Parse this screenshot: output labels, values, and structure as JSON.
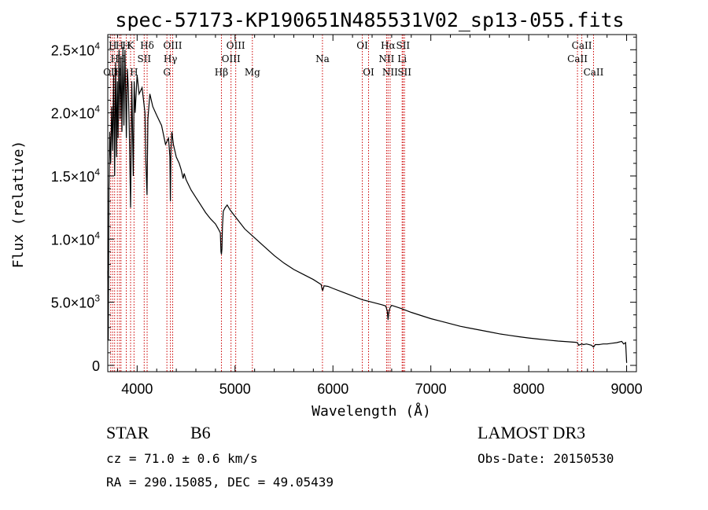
{
  "chart_data": {
    "type": "line",
    "title": "spec-57173-KP190651N485531V02_sp13-055.fits",
    "xlabel": "Wavelength (Å)",
    "ylabel": "Flux (relative)",
    "xlim": [
      3700,
      9100
    ],
    "ylim": [
      -500,
      26200
    ],
    "x_ticks": [
      {
        "value": 4000,
        "label": "4000"
      },
      {
        "value": 5000,
        "label": "5000"
      },
      {
        "value": 6000,
        "label": "6000"
      },
      {
        "value": 7000,
        "label": "7000"
      },
      {
        "value": 8000,
        "label": "8000"
      },
      {
        "value": 9000,
        "label": "9000"
      }
    ],
    "y_ticks": [
      {
        "value": 0,
        "mant": "0",
        "exp": ""
      },
      {
        "value": 5000,
        "mant": "5.0×10",
        "exp": "3"
      },
      {
        "value": 10000,
        "mant": "1.0×10",
        "exp": "4"
      },
      {
        "value": 15000,
        "mant": "1.5×10",
        "exp": "4"
      },
      {
        "value": 20000,
        "mant": "2.0×10",
        "exp": "4"
      },
      {
        "value": 25000,
        "mant": "2.5×10",
        "exp": "4"
      }
    ],
    "series": [
      {
        "name": "spectrum",
        "x": [
          3700,
          3705,
          3712,
          3720,
          3730,
          3740,
          3750,
          3760,
          3770,
          3780,
          3790,
          3798,
          3805,
          3815,
          3825,
          3835,
          3845,
          3855,
          3865,
          3875,
          3885,
          3890,
          3900,
          3910,
          3920,
          3933,
          3945,
          3960,
          3970,
          3980,
          4000,
          4020,
          4050,
          4080,
          4090,
          4101,
          4110,
          4130,
          4160,
          4200,
          4250,
          4290,
          4320,
          4335,
          4340,
          4345,
          4355,
          4370,
          4400,
          4430,
          4450,
          4470,
          4480,
          4500,
          4550,
          4600,
          4650,
          4700,
          4750,
          4800,
          4830,
          4850,
          4856,
          4861,
          4866,
          4872,
          4880,
          4900,
          4920,
          4950,
          5000,
          5050,
          5100,
          5200,
          5300,
          5400,
          5500,
          5600,
          5700,
          5800,
          5880,
          5890,
          5896,
          5900,
          5910,
          5950,
          6000,
          6100,
          6200,
          6300,
          6400,
          6500,
          6540,
          6555,
          6563,
          6570,
          6585,
          6600,
          6700,
          6800,
          6900,
          7000,
          7100,
          7200,
          7300,
          7400,
          7500,
          7600,
          7700,
          7800,
          7900,
          8000,
          8100,
          8200,
          8300,
          8400,
          8480,
          8498,
          8510,
          8542,
          8560,
          8590,
          8640,
          8662,
          8680,
          8720,
          8760,
          8800,
          8850,
          8900,
          8950,
          8970,
          8990,
          9000
        ],
        "y": [
          7500,
          2000,
          14000,
          18500,
          16000,
          20500,
          17000,
          23000,
          15000,
          24000,
          16500,
          22500,
          18000,
          25000,
          19500,
          24500,
          18500,
          25200,
          19000,
          25000,
          20500,
          18000,
          23500,
          22000,
          18500,
          12500,
          22500,
          15000,
          22500,
          20000,
          23000,
          21500,
          22000,
          20000,
          16000,
          13500,
          19500,
          21500,
          20500,
          19800,
          19000,
          17500,
          18000,
          16500,
          13000,
          17000,
          18500,
          17500,
          16500,
          16000,
          15500,
          14800,
          15200,
          14700,
          13900,
          13300,
          12700,
          12100,
          11600,
          11200,
          10800,
          10500,
          9000,
          8800,
          9200,
          11000,
          12200,
          12500,
          12700,
          12300,
          11800,
          11300,
          10800,
          10100,
          9400,
          8700,
          8100,
          7600,
          7200,
          6800,
          6400,
          6000,
          5950,
          6050,
          6300,
          6250,
          6100,
          5800,
          5500,
          5200,
          5000,
          4800,
          4700,
          4300,
          3600,
          4200,
          4600,
          4750,
          4500,
          4200,
          3950,
          3700,
          3500,
          3300,
          3100,
          2950,
          2800,
          2650,
          2500,
          2380,
          2270,
          2170,
          2080,
          2000,
          1930,
          1870,
          1830,
          1800,
          1600,
          1700,
          1650,
          1700,
          1600,
          1450,
          1650,
          1650,
          1700,
          1700,
          1750,
          1800,
          1900,
          1700,
          1800,
          200
        ]
      }
    ],
    "lines": [
      {
        "wave": 3730,
        "label": "OII",
        "row": 3
      },
      {
        "wave": 3750,
        "label": "H",
        "row": 1
      },
      {
        "wave": 3770,
        "label": "H",
        "row": 2
      },
      {
        "wave": 3798,
        "label": "H",
        "row": 3
      },
      {
        "wave": 3820,
        "label": "H",
        "row": 1
      },
      {
        "wave": 3835,
        "label": "H",
        "row": 2
      },
      {
        "wave": 3889,
        "label": "H",
        "row": 1
      },
      {
        "wave": 3933,
        "label": "K",
        "row": 1
      },
      {
        "wave": 3968,
        "label": "H",
        "row": 3
      },
      {
        "wave": 4072,
        "label": "SII",
        "row": 2
      },
      {
        "wave": 4102,
        "label": "Hδ",
        "row": 1
      },
      {
        "wave": 4304,
        "label": "G",
        "row": 3
      },
      {
        "wave": 4340,
        "label": "Hγ",
        "row": 2
      },
      {
        "wave": 4363,
        "label": "OIII",
        "row": 1
      },
      {
        "wave": 4861,
        "label": "Hβ",
        "row": 3
      },
      {
        "wave": 4959,
        "label": "OIII",
        "row": 2
      },
      {
        "wave": 5007,
        "label": "OIII",
        "row": 1
      },
      {
        "wave": 5177,
        "label": "Mg",
        "row": 3
      },
      {
        "wave": 5893,
        "label": "Na",
        "row": 2
      },
      {
        "wave": 6300,
        "label": "OI",
        "row": 1
      },
      {
        "wave": 6364,
        "label": "OI",
        "row": 3
      },
      {
        "wave": 6548,
        "label": "NII",
        "row": 2
      },
      {
        "wave": 6563,
        "label": "Hα",
        "row": 1
      },
      {
        "wave": 6584,
        "label": "NII",
        "row": 3
      },
      {
        "wave": 6707,
        "label": "Li",
        "row": 2
      },
      {
        "wave": 6716,
        "label": "SII",
        "row": 1
      },
      {
        "wave": 6731,
        "label": "SII",
        "row": 3
      },
      {
        "wave": 8498,
        "label": "CaII",
        "row": 2
      },
      {
        "wave": 8542,
        "label": "CaII",
        "row": 1
      },
      {
        "wave": 8662,
        "label": "CaII",
        "row": 3
      }
    ]
  },
  "info": {
    "obj_class": "STAR",
    "subclass": "B6",
    "survey": "LAMOST DR3",
    "redshift": "cz = 71.0 ± 0.6 km/s",
    "obs_date": "Obs-Date: 20150530",
    "coords": "RA = 290.15085, DEC =  49.05439"
  },
  "colors": {
    "line_marker": "#cc0000",
    "spectrum": "#000000",
    "axes": "#000000"
  }
}
